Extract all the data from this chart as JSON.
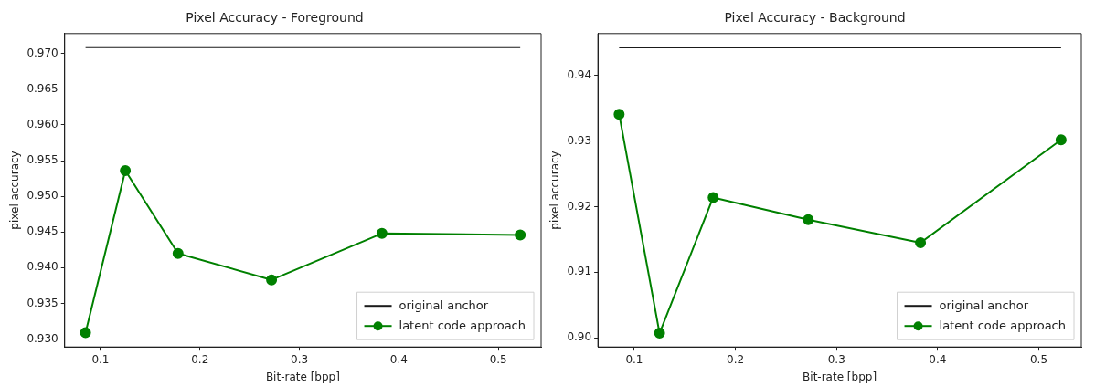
{
  "chart_data": [
    {
      "type": "line",
      "title": "Pixel Accuracy - Foreground",
      "xlabel": "Bit-rate [bpp]",
      "ylabel": "pixel accuracy",
      "xlim": [
        0.064,
        0.543
      ],
      "xticks": [
        0.1,
        0.2,
        0.3,
        0.4,
        0.5
      ],
      "ylim": [
        0.9289,
        0.9728
      ],
      "yticks": [
        {
          "value": 0.93,
          "label": "0.930"
        },
        0.935,
        {
          "value": 0.94,
          "label": "0.940"
        },
        0.945,
        {
          "value": 0.95,
          "label": "0.950"
        },
        0.955,
        {
          "value": 0.96,
          "label": "0.960"
        },
        0.965,
        {
          "value": 0.97,
          "label": "0.970"
        }
      ],
      "grid": false,
      "legend": "bottom right",
      "series": [
        {
          "name": "original anchor",
          "color": "#1a1a1a",
          "x": [
            0.085,
            0.522
          ],
          "values": [
            0.9709,
            0.9709
          ],
          "marker": "none"
        },
        {
          "name": "latent code approach",
          "color": "#008000",
          "x": [
            0.085,
            0.125,
            0.178,
            0.272,
            0.383,
            0.522
          ],
          "values": [
            0.9309,
            0.9536,
            0.942,
            0.9383,
            0.9448,
            0.9446
          ],
          "marker": "circle"
        }
      ]
    },
    {
      "type": "line",
      "title": "Pixel Accuracy - Background",
      "xlabel": "Bit-rate [bpp]",
      "ylabel": "pixel accuracy",
      "xlim": [
        0.064,
        0.542
      ],
      "xticks": [
        0.1,
        0.2,
        0.3,
        0.4,
        0.5
      ],
      "ylim": [
        0.8986,
        0.9464
      ],
      "yticks": [
        {
          "value": 0.9,
          "label": "0.90"
        },
        0.91,
        0.92,
        0.93,
        0.94
      ],
      "grid": false,
      "legend": "bottom right",
      "series": [
        {
          "name": "original anchor",
          "color": "#1a1a1a",
          "x": [
            0.085,
            0.522
          ],
          "values": [
            0.9443,
            0.9443
          ],
          "marker": "none"
        },
        {
          "name": "latent code approach",
          "color": "#008000",
          "x": [
            0.085,
            0.125,
            0.178,
            0.272,
            0.383,
            0.522
          ],
          "values": [
            0.9341,
            0.9007,
            0.9214,
            0.918,
            0.9145,
            0.9302
          ],
          "marker": "circle"
        }
      ]
    }
  ]
}
